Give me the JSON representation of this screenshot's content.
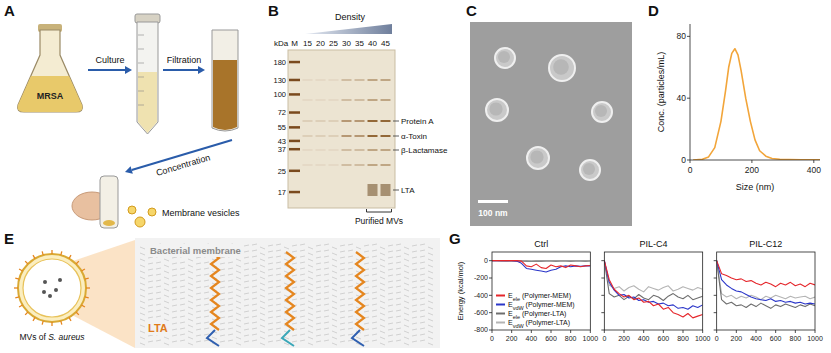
{
  "figure": {
    "panels": {
      "A": {
        "letter": "A",
        "flask_label": "MRSA",
        "steps": [
          "Culture",
          "Filtration",
          "Concentration"
        ],
        "product_label": "Membrane vesicles"
      },
      "B": {
        "letter": "B",
        "gradient_label": "Density",
        "unit_label": "kDa",
        "marker_lane_label": "M",
        "lanes": [
          15,
          20,
          25,
          30,
          35,
          40,
          45
        ],
        "marker_sizes": [
          180,
          130,
          100,
          72,
          55,
          43,
          37,
          25,
          17
        ],
        "band_labels": [
          "Protein A",
          "α-Toxin",
          "β-Lactamase",
          "LTA"
        ],
        "bracket_label": "Purified MVs"
      },
      "C": {
        "letter": "C",
        "scale_bar_label": "100 nm"
      },
      "D": {
        "letter": "D"
      },
      "E": {
        "letter": "E",
        "vesicle_label": [
          "MVs of ",
          "S. aureus"
        ],
        "membrane_label": "Bacterial membrane",
        "molecule_label": "LTA"
      },
      "G": {
        "letter": "G"
      }
    }
  },
  "chart_data": [
    {
      "type": "line",
      "xlabel": "Size (nm)",
      "ylabel": "Conc. (particles/mL)",
      "x": [
        10,
        40,
        60,
        80,
        100,
        115,
        125,
        135,
        145,
        155,
        165,
        180,
        195,
        210,
        225,
        245,
        265,
        290,
        320,
        360,
        420
      ],
      "values": [
        0,
        0.5,
        2,
        8,
        25,
        45,
        60,
        69,
        72,
        68,
        58,
        40,
        25,
        13,
        6,
        2.5,
        1,
        0.5,
        0.3,
        0.2,
        0.2
      ],
      "color": "#f2a53a",
      "xlim": [
        0,
        420
      ],
      "ylim": [
        0,
        88
      ],
      "xticks": [
        0,
        200,
        400
      ],
      "yticks": [
        0,
        40,
        80
      ]
    },
    {
      "type": "line",
      "title": "Ctrl",
      "ylabel": "Energy (kcal/mol)",
      "x": [
        0,
        50,
        100,
        150,
        200,
        250,
        300,
        350,
        400,
        450,
        500,
        550,
        600,
        650,
        700,
        750,
        800,
        850,
        900,
        950,
        1000
      ],
      "xlim": [
        0,
        1000
      ],
      "ylim": [
        -800,
        100
      ],
      "xticks": [
        0,
        200,
        400,
        600,
        800,
        1000
      ],
      "yticks": [
        0,
        -200,
        -400,
        -600,
        -800
      ],
      "legend": "lower left",
      "series": [
        {
          "name": "Eele (Polymer-MEM)",
          "color": "#e5262b",
          "values": [
            0,
            0,
            0,
            0,
            0,
            0,
            -5,
            -60,
            -70,
            -40,
            -80,
            -90,
            -50,
            -70,
            -60,
            -80,
            -50,
            -60,
            -70,
            -60,
            -55
          ]
        },
        {
          "name": "EvdW (Polymer-MEM)",
          "color": "#2b36c9",
          "values": [
            0,
            0,
            0,
            0,
            0,
            -5,
            -30,
            -90,
            -100,
            -110,
            -120,
            -130,
            -110,
            -100,
            -70,
            -60,
            -70,
            -60,
            -65,
            -60,
            -60
          ]
        },
        {
          "name": "Eele (Polymer-LTA)",
          "color": "#6e6e6e",
          "values": [
            0,
            0,
            -2,
            -3,
            -2,
            -4,
            -3,
            -5,
            -6,
            -4,
            -5,
            -3,
            -4,
            -5,
            -3,
            -4,
            -5,
            -3,
            -4,
            -5,
            -4
          ]
        },
        {
          "name": "EvdW (Polymer-LTA)",
          "color": "#b4b4b4",
          "values": [
            0,
            -1,
            -1,
            -2,
            -1,
            -2,
            -1,
            -2,
            -1,
            -2,
            -1,
            -2,
            -1,
            -2,
            -1,
            -2,
            -1,
            -2,
            -1,
            -2,
            -1
          ]
        }
      ]
    },
    {
      "type": "line",
      "title": "PIL-C4",
      "x": [
        0,
        50,
        100,
        150,
        200,
        250,
        300,
        350,
        400,
        450,
        500,
        550,
        600,
        650,
        700,
        750,
        800,
        850,
        900,
        950,
        1000
      ],
      "xlim": [
        0,
        1000
      ],
      "ylim": [
        -800,
        100
      ],
      "xticks": [
        0,
        200,
        400,
        600,
        800,
        1000
      ],
      "yticks": [
        0,
        -200,
        -400,
        -600,
        -800
      ],
      "tick_labels": "x",
      "series": [
        {
          "color": "#e5262b",
          "values": [
            0,
            -220,
            -330,
            -380,
            -420,
            -400,
            -450,
            -430,
            -480,
            -470,
            -520,
            -500,
            -560,
            -540,
            -600,
            -620,
            -650,
            -610,
            -660,
            -640,
            -620
          ]
        },
        {
          "color": "#2b36c9",
          "values": [
            0,
            -250,
            -340,
            -400,
            -390,
            -430,
            -420,
            -460,
            -450,
            -480,
            -470,
            -500,
            -490,
            -520,
            -510,
            -550,
            -540,
            -560,
            -520,
            -540,
            -510
          ]
        },
        {
          "color": "#6e6e6e",
          "values": [
            0,
            -380,
            -420,
            -400,
            -450,
            -410,
            -440,
            -390,
            -430,
            -450,
            -400,
            -420,
            -460,
            -410,
            -380,
            -420,
            -440,
            -400,
            -450,
            -430,
            -410
          ]
        },
        {
          "color": "#b4b4b4",
          "values": [
            0,
            -280,
            -320,
            -300,
            -350,
            -310,
            -290,
            -330,
            -360,
            -300,
            -320,
            -340,
            -310,
            -290,
            -350,
            -330,
            -300,
            -320,
            -340,
            -310,
            -330
          ]
        }
      ]
    },
    {
      "type": "line",
      "title": "PIL-C12",
      "x": [
        0,
        50,
        100,
        150,
        200,
        250,
        300,
        350,
        400,
        450,
        500,
        550,
        600,
        650,
        700,
        750,
        800,
        850,
        900,
        950,
        1000
      ],
      "xlim": [
        0,
        1000
      ],
      "ylim": [
        -800,
        100
      ],
      "xticks": [
        0,
        200,
        400,
        600,
        800,
        1000
      ],
      "yticks": [
        0,
        -200,
        -400,
        -600,
        -800
      ],
      "tick_labels": "x",
      "series": [
        {
          "color": "#e5262b",
          "values": [
            0,
            -150,
            -170,
            -200,
            -220,
            -210,
            -240,
            -230,
            -260,
            -280,
            -250,
            -270,
            -300,
            -260,
            -280,
            -250,
            -290,
            -270,
            -300,
            -260,
            -280
          ]
        },
        {
          "color": "#2b36c9",
          "values": [
            0,
            -220,
            -280,
            -320,
            -350,
            -360,
            -390,
            -420,
            -440,
            -450,
            -460,
            -440,
            -470,
            -460,
            -480,
            -470,
            -490,
            -480,
            -500,
            -490,
            -500
          ]
        },
        {
          "color": "#6e6e6e",
          "values": [
            0,
            -450,
            -500,
            -480,
            -520,
            -510,
            -540,
            -500,
            -530,
            -490,
            -520,
            -550,
            -510,
            -530,
            -500,
            -520,
            -540,
            -510,
            -530,
            -500,
            -520
          ]
        },
        {
          "color": "#b4b4b4",
          "values": [
            0,
            -380,
            -420,
            -400,
            -440,
            -410,
            -430,
            -400,
            -420,
            -450,
            -410,
            -430,
            -400,
            -420,
            -440,
            -410,
            -430,
            -420,
            -410,
            -440,
            -420
          ]
        }
      ]
    }
  ]
}
